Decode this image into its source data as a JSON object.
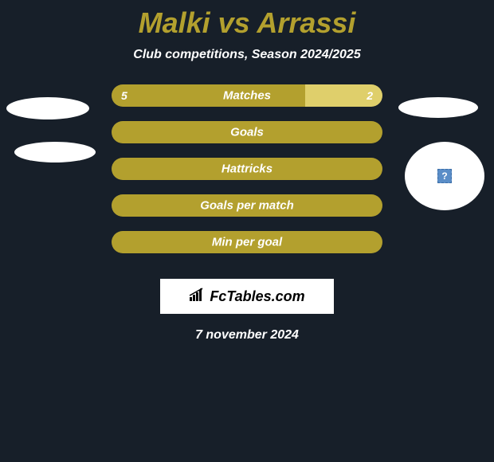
{
  "title": "Malki vs Arrassi",
  "subtitle": "Club competitions, Season 2024/2025",
  "date": "7 november 2024",
  "logo": "FcTables.com",
  "colors": {
    "bg": "#171f29",
    "title": "#b3a02e",
    "bar_primary": "#b3a02e",
    "bar_secondary": "#dfcf6b",
    "text": "#ffffff",
    "logo_bg": "#ffffff"
  },
  "rows": [
    {
      "label": "Matches",
      "left_val": "5",
      "right_val": "2",
      "left_pct": 71.4,
      "right_pct": 28.6,
      "show_vals": true
    },
    {
      "label": "Goals",
      "left_val": "",
      "right_val": "",
      "left_pct": 100,
      "right_pct": 0,
      "show_vals": false
    },
    {
      "label": "Hattricks",
      "left_val": "",
      "right_val": "",
      "left_pct": 100,
      "right_pct": 0,
      "show_vals": false
    },
    {
      "label": "Goals per match",
      "left_val": "",
      "right_val": "",
      "left_pct": 100,
      "right_pct": 0,
      "show_vals": false
    },
    {
      "label": "Min per goal",
      "left_val": "",
      "right_val": "",
      "left_pct": 100,
      "right_pct": 0,
      "show_vals": false
    }
  ],
  "avatar_icon": "?"
}
